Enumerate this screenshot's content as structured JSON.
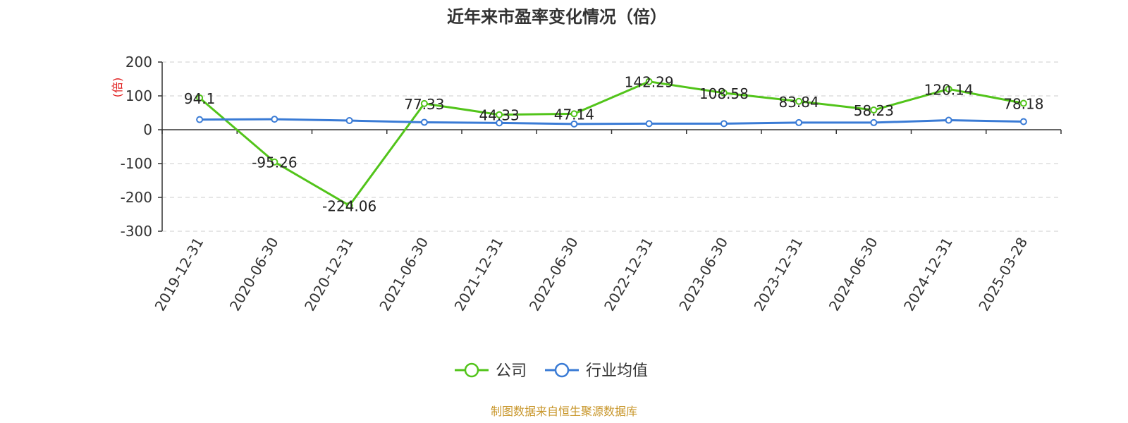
{
  "chart_data": {
    "type": "line",
    "title": "近年来市盈率变化情况（倍）",
    "ylabel": "(倍)",
    "xlabel": "",
    "ylim": [
      -300,
      200
    ],
    "yticks": [
      200,
      100,
      0,
      -100,
      -200,
      -300
    ],
    "grid": true,
    "legend_position": "bottom-center",
    "categories": [
      "2019-12-31",
      "2020-06-30",
      "2020-12-31",
      "2021-06-30",
      "2021-12-31",
      "2022-06-30",
      "2022-12-31",
      "2023-06-30",
      "2023-12-31",
      "2024-06-30",
      "2024-12-31",
      "2025-03-28"
    ],
    "series": [
      {
        "name": "公司",
        "color": "#52c41a",
        "values": [
          94.1,
          -95.26,
          -224.06,
          77.33,
          44.33,
          47.14,
          142.29,
          108.58,
          83.84,
          58.23,
          120.14,
          78.18
        ],
        "labels": [
          "94.1",
          "-95.26",
          "-224.06",
          "77.33",
          "44.33",
          "47.14",
          "142.29",
          "108.58",
          "83.84",
          "58.23",
          "120.14",
          "78.18"
        ]
      },
      {
        "name": "行业均值",
        "color": "#3a7bd5",
        "values": [
          30,
          31,
          27,
          22,
          20,
          17,
          18,
          18,
          21,
          21,
          28,
          24
        ]
      }
    ]
  },
  "source_text": "制图数据来自恒生聚源数据库"
}
